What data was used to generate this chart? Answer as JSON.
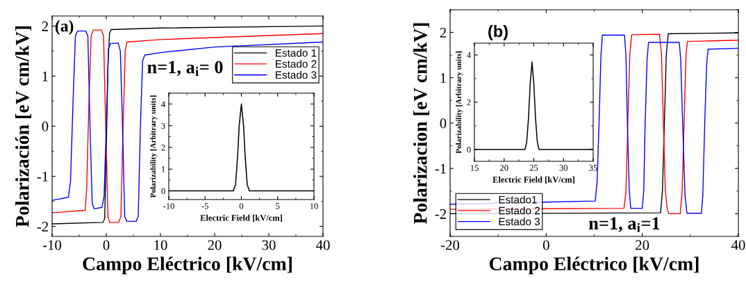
{
  "chart_data": [
    {
      "type": "line",
      "xlabel": "Campo Eléctrico [kV/cm]",
      "ylabel": "Polarización [eV cm/kV]",
      "xlim": [
        -10,
        40
      ],
      "ylim": [
        -2.2,
        2.2
      ],
      "xticks": [
        -10,
        0,
        10,
        20,
        30,
        40
      ],
      "yticks": [
        -2,
        -1,
        0,
        1,
        2
      ],
      "legend": "top right",
      "annotations": [
        "(a)",
        "n=1, a$_{i}$= 0"
      ],
      "series": [
        {
          "name": "Estado 1",
          "color": "#000000",
          "x": [
            -10,
            -0.6,
            -0.3,
            0,
            0.3,
            0.6,
            0.9,
            10,
            40
          ],
          "values": [
            -1.95,
            -1.92,
            -1.85,
            -0.5,
            1.2,
            1.85,
            1.93,
            1.96,
            2.0
          ]
        },
        {
          "name": "Estado 2",
          "color": "#ff0000",
          "x": [
            -10,
            -3.9,
            -3.6,
            -3.2,
            -2.8,
            -2.4,
            -0.9,
            -0.5,
            -0.1,
            0.3,
            0.6,
            2.3,
            2.7,
            3.1,
            3.5,
            3.8,
            10,
            40
          ],
          "values": [
            -1.73,
            -1.68,
            -1.2,
            0.5,
            1.8,
            1.92,
            1.92,
            1.8,
            0,
            -1.8,
            -1.92,
            -1.92,
            -1.8,
            0,
            1.5,
            1.68,
            1.73,
            1.85
          ]
        },
        {
          "name": "Estado 3",
          "color": "#0000ff",
          "x": [
            -10,
            -7,
            -6.6,
            -6.1,
            -5.7,
            -5.3,
            -3.8,
            -3.4,
            -3,
            -2.6,
            -2.2,
            -0.8,
            -0.4,
            0,
            0.4,
            0.8,
            2.2,
            2.6,
            3,
            3.4,
            3.8,
            5.5,
            5.9,
            6.3,
            6.7,
            7.1,
            10,
            20,
            40
          ],
          "values": [
            -1.48,
            -1.42,
            -1.1,
            0.6,
            1.8,
            1.9,
            1.9,
            1.8,
            0,
            -1.55,
            -1.65,
            -1.62,
            -1.4,
            0,
            1.55,
            1.65,
            1.66,
            1.5,
            0,
            -1.8,
            -1.9,
            -1.9,
            -1.8,
            0,
            1.3,
            1.42,
            1.47,
            1.58,
            1.68
          ]
        }
      ]
    },
    {
      "type": "line",
      "xlabel": "Electric Field [kV/cm]",
      "ylabel": "Polarizability [Arbitrary units]",
      "xlim": [
        -10,
        10
      ],
      "ylim": [
        -0.4,
        4.5
      ],
      "xticks": [
        -10,
        -5,
        0,
        5,
        10
      ],
      "yticks": [
        0,
        1,
        2,
        3,
        4
      ],
      "series": [
        {
          "color": "#000000",
          "x": [
            -10,
            -1.1,
            -0.8,
            -0.5,
            -0.3,
            0,
            0.3,
            0.5,
            0.8,
            1.1,
            10
          ],
          "values": [
            0,
            0,
            0.3,
            1.7,
            3.0,
            4.0,
            3.0,
            1.7,
            0.3,
            0,
            0
          ]
        }
      ]
    },
    {
      "type": "line",
      "xlabel": "Campo Eléctrico [kV/cm]",
      "ylabel": "Polarizacion [eV cm/kV]",
      "xlim": [
        -20,
        40
      ],
      "ylim": [
        -2.5,
        2.5
      ],
      "xticks": [
        -20,
        0,
        20,
        40
      ],
      "yticks": [
        -2,
        -1,
        0,
        1,
        2
      ],
      "legend": "bottom left",
      "annotations": [
        "(b)",
        "n=1, a$_{i}$=1"
      ],
      "series": [
        {
          "name": "Estado1",
          "color": "#000000",
          "x": [
            -20,
            23.8,
            24.2,
            24.6,
            25,
            25.4,
            40
          ],
          "values": [
            -2.0,
            -1.98,
            -1.5,
            0,
            1.5,
            1.97,
            1.99
          ]
        },
        {
          "name": "Estado 2",
          "color": "#ff0000",
          "x": [
            -20,
            16.2,
            16.6,
            17,
            17.4,
            17.8,
            23.6,
            24,
            24.4,
            24.8,
            25.2,
            25.5,
            27.9,
            28.3,
            28.7,
            29.1,
            29.4,
            40
          ],
          "values": [
            -1.9,
            -1.88,
            -1.5,
            0,
            1.5,
            1.95,
            1.96,
            1.5,
            0,
            -1.5,
            -1.9,
            -2.0,
            -2.0,
            -1.5,
            0,
            1.5,
            1.8,
            1.83
          ]
        },
        {
          "name": "Estado 3",
          "color": "#0000ff",
          "x": [
            -20,
            10.2,
            10.6,
            11,
            11.4,
            11.7,
            16.3,
            16.6,
            16.9,
            17.3,
            17.6,
            20,
            20.3,
            20.6,
            21,
            21.3,
            27.7,
            28,
            28.4,
            28.9,
            29.3,
            32.3,
            32.6,
            33,
            33.4,
            33.7,
            40
          ],
          "values": [
            -1.79,
            -1.72,
            -1.3,
            0,
            1.5,
            1.94,
            1.94,
            1.5,
            0,
            -1.5,
            -1.88,
            -1.88,
            -1.5,
            0,
            1.4,
            1.78,
            1.78,
            1.4,
            0,
            -1.6,
            -1.99,
            -1.99,
            -1.6,
            0,
            1.3,
            1.63,
            1.65
          ]
        }
      ]
    },
    {
      "type": "line",
      "xlabel": "Electric Field [kV/cm]",
      "ylabel": "Polarizability [Arbitrary units]",
      "xlim": [
        15,
        35
      ],
      "ylim": [
        -0.5,
        4.5
      ],
      "xticks": [
        15,
        20,
        25,
        30,
        35
      ],
      "yticks": [
        0,
        2,
        4
      ],
      "series": [
        {
          "color": "#000000",
          "x": [
            15,
            23.5,
            23.8,
            24.1,
            24.4,
            24.7,
            25,
            25.3,
            25.6,
            25.9,
            35
          ],
          "values": [
            0,
            0,
            0.3,
            1.3,
            2.8,
            3.7,
            2.8,
            1.3,
            0.3,
            0,
            0
          ]
        }
      ]
    }
  ]
}
